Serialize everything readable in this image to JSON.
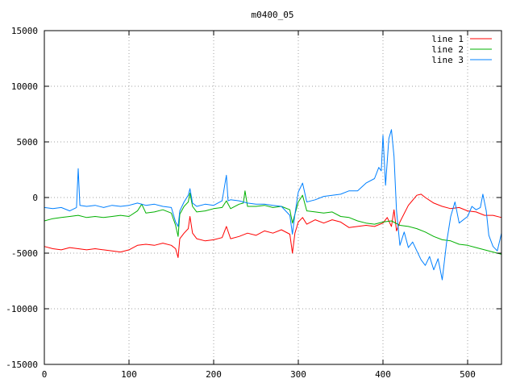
{
  "chart_data": {
    "type": "line",
    "title": "m0400_05",
    "xlabel": "",
    "ylabel": "",
    "xlim": [
      0,
      540
    ],
    "ylim": [
      -15000,
      15000
    ],
    "xticks": [
      0,
      100,
      200,
      300,
      400,
      500
    ],
    "yticks": [
      -15000,
      -10000,
      -5000,
      0,
      5000,
      10000,
      15000
    ],
    "grid": true,
    "legend_position": "top-right",
    "series": [
      {
        "name": "line 1",
        "color": "#ff0000",
        "x": [
          0,
          10,
          20,
          30,
          40,
          50,
          60,
          70,
          80,
          90,
          100,
          110,
          120,
          130,
          140,
          150,
          155,
          158,
          160,
          165,
          170,
          172,
          175,
          180,
          190,
          200,
          210,
          215,
          220,
          230,
          240,
          250,
          260,
          270,
          280,
          290,
          293,
          296,
          300,
          305,
          310,
          320,
          330,
          340,
          350,
          360,
          370,
          380,
          390,
          400,
          405,
          410,
          413,
          416,
          420,
          430,
          440,
          445,
          450,
          460,
          470,
          480,
          490,
          500,
          510,
          520,
          530,
          540
        ],
        "y": [
          -4400,
          -4600,
          -4700,
          -4500,
          -4600,
          -4700,
          -4600,
          -4700,
          -4800,
          -4900,
          -4700,
          -4300,
          -4200,
          -4300,
          -4100,
          -4300,
          -4600,
          -5400,
          -3700,
          -3200,
          -2800,
          -1700,
          -3200,
          -3700,
          -3900,
          -3800,
          -3600,
          -2600,
          -3700,
          -3500,
          -3200,
          -3400,
          -3000,
          -3200,
          -2900,
          -3300,
          -5000,
          -3200,
          -2200,
          -1800,
          -2400,
          -2000,
          -2300,
          -2000,
          -2200,
          -2700,
          -2600,
          -2500,
          -2600,
          -2300,
          -1800,
          -2600,
          -1100,
          -3000,
          -2200,
          -700,
          200,
          300,
          0,
          -500,
          -800,
          -1000,
          -900,
          -1200,
          -1300,
          -1600,
          -1600,
          -1800
        ]
      },
      {
        "name": "line 2",
        "color": "#00b000",
        "x": [
          0,
          10,
          20,
          30,
          40,
          50,
          60,
          70,
          80,
          90,
          100,
          110,
          115,
          120,
          130,
          140,
          150,
          155,
          158,
          160,
          165,
          170,
          172,
          175,
          180,
          190,
          200,
          210,
          215,
          220,
          230,
          235,
          237,
          240,
          250,
          260,
          270,
          280,
          290,
          293,
          296,
          300,
          305,
          310,
          320,
          330,
          340,
          350,
          360,
          370,
          380,
          390,
          400,
          410,
          420,
          430,
          440,
          450,
          460,
          470,
          480,
          490,
          500,
          510,
          520,
          530,
          540
        ],
        "y": [
          -2100,
          -1900,
          -1800,
          -1700,
          -1600,
          -1800,
          -1700,
          -1800,
          -1700,
          -1600,
          -1700,
          -1200,
          -600,
          -1400,
          -1300,
          -1100,
          -1400,
          -2500,
          -3500,
          -1500,
          -800,
          -400,
          400,
          -800,
          -1300,
          -1200,
          -1000,
          -900,
          -300,
          -1000,
          -600,
          -500,
          600,
          -800,
          -800,
          -700,
          -900,
          -800,
          -1100,
          -2300,
          -1500,
          -400,
          200,
          -1200,
          -1300,
          -1400,
          -1300,
          -1700,
          -1800,
          -2100,
          -2300,
          -2400,
          -2200,
          -2100,
          -2500,
          -2600,
          -2800,
          -3100,
          -3500,
          -3800,
          -3900,
          -4200,
          -4300,
          -4500,
          -4700,
          -4900,
          -5100
        ]
      },
      {
        "name": "line 3",
        "color": "#0080ff",
        "x": [
          0,
          10,
          20,
          30,
          38,
          40,
          42,
          50,
          60,
          70,
          80,
          90,
          100,
          110,
          120,
          130,
          140,
          150,
          155,
          158,
          160,
          165,
          170,
          172,
          175,
          180,
          190,
          200,
          210,
          215,
          217,
          220,
          230,
          240,
          250,
          260,
          270,
          280,
          290,
          293,
          296,
          300,
          305,
          310,
          320,
          330,
          340,
          350,
          360,
          370,
          380,
          390,
          395,
          398,
          400,
          403,
          407,
          410,
          413,
          416,
          420,
          425,
          430,
          435,
          440,
          445,
          450,
          455,
          460,
          465,
          470,
          475,
          480,
          485,
          490,
          500,
          505,
          510,
          515,
          518,
          522,
          525,
          530,
          535,
          540
        ],
        "y": [
          -900,
          -1000,
          -900,
          -1200,
          -900,
          2600,
          -700,
          -800,
          -700,
          -900,
          -700,
          -800,
          -700,
          -500,
          -700,
          -600,
          -800,
          -900,
          -2200,
          -2600,
          -1200,
          -400,
          200,
          800,
          -500,
          -800,
          -600,
          -700,
          -300,
          2000,
          -300,
          -200,
          -300,
          -500,
          -600,
          -600,
          -700,
          -800,
          -1600,
          -3300,
          -1500,
          500,
          1300,
          -400,
          -200,
          100,
          200,
          300,
          600,
          600,
          1300,
          1700,
          2700,
          2400,
          5600,
          1100,
          5300,
          6100,
          3700,
          -1200,
          -4300,
          -3100,
          -4500,
          -4000,
          -4800,
          -5600,
          -6100,
          -5300,
          -6500,
          -5500,
          -7400,
          -4100,
          -1700,
          -400,
          -2300,
          -1700,
          -800,
          -1100,
          -900,
          300,
          -1200,
          -3400,
          -4400,
          -4800,
          -3200
        ]
      }
    ]
  }
}
